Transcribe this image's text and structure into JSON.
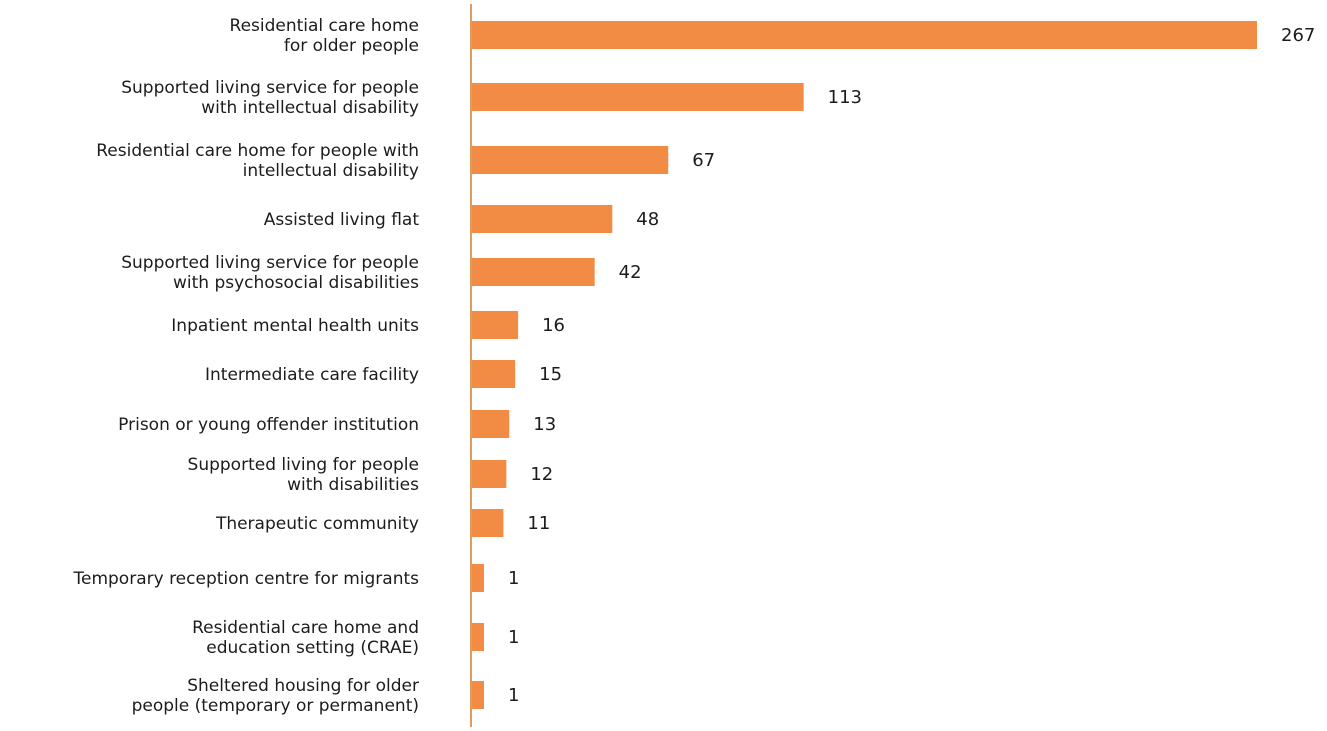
{
  "chart_data": {
    "type": "bar",
    "orientation": "horizontal",
    "title": "",
    "xlabel": "",
    "ylabel": "",
    "grid": false,
    "legend": "none",
    "xlim": [
      0,
      267
    ],
    "bar_color": "#F28C44",
    "axis_color": "#E39A5E",
    "text_color": "#1c1c1c",
    "categories": [
      [
        "Residential care home",
        "for older people"
      ],
      [
        "Supported living service for people",
        "with intellectual disability"
      ],
      [
        "Residential care home for people with",
        "intellectual disability"
      ],
      [
        "Assisted living flat"
      ],
      [
        "Supported living service for people",
        "with psychosocial disabilities"
      ],
      [
        "Inpatient mental health units"
      ],
      [
        "Intermediate care facility"
      ],
      [
        "Prison or young offender institution"
      ],
      [
        "Supported living for people",
        "with disabilities"
      ],
      [
        "Therapeutic community"
      ],
      [
        "Temporary reception centre for migrants"
      ],
      [
        "Residential care home and",
        "education setting (CRAE)"
      ],
      [
        "Sheltered housing for older",
        "people (temporary or permanent)"
      ]
    ],
    "values": [
      267,
      113,
      67,
      48,
      42,
      16,
      15,
      13,
      12,
      11,
      1,
      1,
      1
    ]
  }
}
